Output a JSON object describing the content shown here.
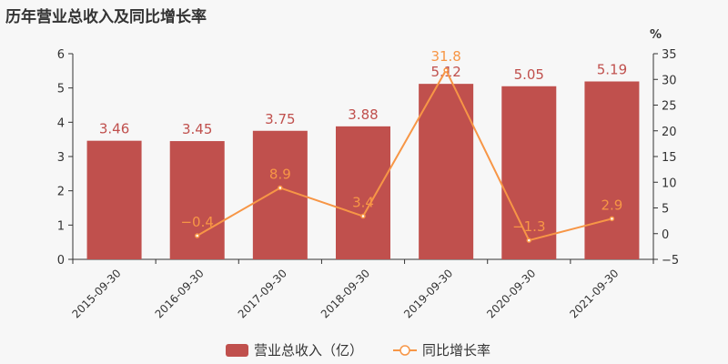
{
  "title": "历年营业总收入及同比增长率",
  "chart_data": {
    "type": "bar+line",
    "categories": [
      "2015-09-30",
      "2016-09-30",
      "2017-09-30",
      "2018-09-30",
      "2019-09-30",
      "2020-09-30",
      "2021-09-30"
    ],
    "series": [
      {
        "name": "营业总收入（亿）",
        "type": "bar",
        "axis": "left",
        "color": "#c0504d",
        "values": [
          3.46,
          3.45,
          3.75,
          3.88,
          5.12,
          5.05,
          5.19
        ],
        "labels": [
          "3.46",
          "3.45",
          "3.75",
          "3.88",
          "5.12",
          "5.05",
          "5.19"
        ]
      },
      {
        "name": "同比增长率",
        "type": "line",
        "axis": "right",
        "color": "#f79646",
        "values": [
          null,
          -0.4,
          8.9,
          3.4,
          31.8,
          -1.3,
          2.9
        ],
        "labels": [
          "",
          "−0.4",
          "8.9",
          "3.4",
          "31.8",
          "−1.3",
          "2.9"
        ]
      }
    ],
    "left_axis": {
      "ylim": [
        0,
        6
      ],
      "ticks": [
        "0",
        "1",
        "2",
        "3",
        "4",
        "5",
        "6"
      ]
    },
    "right_axis": {
      "label": "%",
      "ylim": [
        -5,
        35
      ],
      "ticks": [
        "−5",
        "0",
        "5",
        "10",
        "15",
        "20",
        "25",
        "30",
        "35"
      ]
    },
    "legend_placement": "bottom-center"
  }
}
